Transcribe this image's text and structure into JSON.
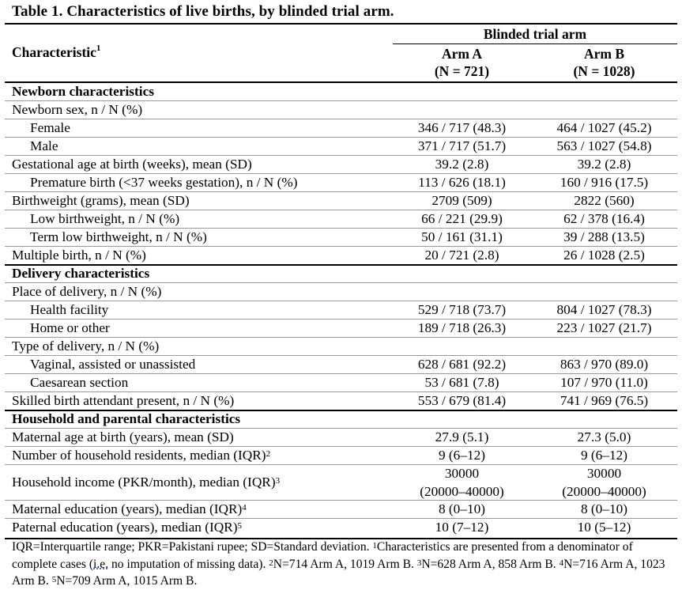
{
  "title": "Table 1. Characteristics of live births, by blinded trial arm.",
  "header": {
    "characteristic": "Characteristic",
    "characteristic_sup": "1",
    "group": "Blinded trial arm",
    "arm_a": "Arm A",
    "arm_a_n": "(N = 721)",
    "arm_b": "Arm B",
    "arm_b_n": "(N = 1028)"
  },
  "rows": [
    {
      "label": "Newborn characteristics",
      "section": true
    },
    {
      "label": "Newborn sex, n / N (%)"
    },
    {
      "label": "Female",
      "indent": true,
      "a": "346 / 717 (48.3)",
      "b": "464 / 1027 (45.2)"
    },
    {
      "label": "Male",
      "indent": true,
      "a": "371 / 717 (51.7)",
      "b": "563 / 1027 (54.8)"
    },
    {
      "label": "Gestational age at birth (weeks), mean (SD)",
      "a": "39.2 (2.8)",
      "b": "39.2 (2.8)"
    },
    {
      "label": "Premature birth (<37 weeks gestation), n / N (%)",
      "indent": true,
      "a": "113 / 626 (18.1)",
      "b": "160 / 916 (17.5)"
    },
    {
      "label": "Birthweight (grams), mean (SD)",
      "a": "2709 (509)",
      "b": "2822 (560)"
    },
    {
      "label": "Low birthweight, n / N (%)",
      "indent": true,
      "a": "66 / 221 (29.9)",
      "b": "62 / 378 (16.4)"
    },
    {
      "label": "Term low birthweight, n / N (%)",
      "indent": true,
      "a": "50 / 161 (31.1)",
      "b": "39 / 288 (13.5)"
    },
    {
      "label": "Multiple birth, n / N (%)",
      "a": "20 / 721 (2.8)",
      "b": "26 / 1028 (2.5)"
    },
    {
      "label": "Delivery characteristics",
      "section": true
    },
    {
      "label": "Place of delivery, n / N (%)"
    },
    {
      "label": "Health facility",
      "indent": true,
      "a": "529 / 718 (73.7)",
      "b": "804 / 1027 (78.3)"
    },
    {
      "label": "Home or other",
      "indent": true,
      "a": "189 / 718 (26.3)",
      "b": "223 / 1027 (21.7)"
    },
    {
      "label": "Type of delivery, n / N (%)"
    },
    {
      "label": "Vaginal, assisted or unassisted",
      "indent": true,
      "a": "628 / 681 (92.2)",
      "b": "863 / 970 (89.0)"
    },
    {
      "label": "Caesarean section",
      "indent": true,
      "a": "53 / 681 (7.8)",
      "b": "107 / 970 (11.0)"
    },
    {
      "label": "Skilled birth attendant present, n / N (%)",
      "a": "553 / 679 (81.4)",
      "b": "741 / 969 (76.5)"
    },
    {
      "label": "Household and parental characteristics",
      "section": true
    },
    {
      "label": "Maternal age at birth (years), mean (SD)",
      "a": "27.9 (5.1)",
      "b": "27.3 (5.0)"
    },
    {
      "label": "Number of household residents, median (IQR)",
      "sup": "2",
      "a": "9 (6–12)",
      "b": "9 (6–12)"
    },
    {
      "label": "Household income (PKR/month), median (IQR)",
      "sup": "3",
      "a": "30000",
      "a2": "(20000–40000)",
      "b": "30000",
      "b2": "(20000–40000)",
      "tall": true
    },
    {
      "label": "Maternal education (years), median (IQR)",
      "sup": "4",
      "a": "8 (0–10)",
      "b": "8 (0–10)"
    },
    {
      "label": "Paternal education (years), median (IQR)",
      "sup": "5",
      "a": "10 (7–12)",
      "b": "10 (5–12)"
    }
  ],
  "footnote": {
    "part1": "IQR=Interquartile range; PKR=Pakistani rupee; SD=Standard deviation. ",
    "sup1": "1",
    "part2": "Characteristics are presented from a denominator of complete cases (",
    "ie": "i.e.",
    "part3": " no imputation of missing data). ",
    "sup2": "2",
    "part4": "N=714 Arm A, 1019 Arm B. ",
    "sup3": "3",
    "part5": "N=628 Arm A, 858 Arm B. ",
    "sup4": "4",
    "part6": "N=716 Arm A, 1023 Arm B. ",
    "sup5": "5",
    "part7": "N=709 Arm A, 1015 Arm B."
  }
}
